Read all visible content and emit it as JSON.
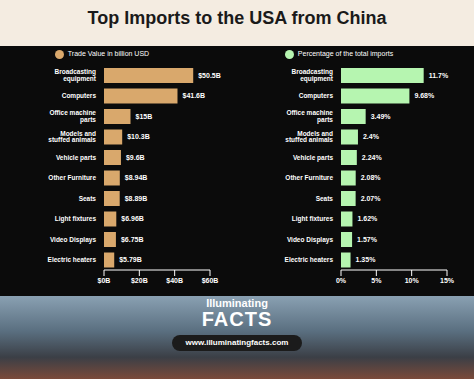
{
  "title": "Top Imports to the USA from China",
  "annotations": [
    "Illuminating",
    "FACTS",
    "www.illuminatingfacts.com"
  ],
  "chart_data": [
    {
      "type": "bar",
      "orientation": "horizontal",
      "categories": [
        "Broadcasting equipment",
        "Computers",
        "Office machine parts",
        "Models and stuffed animals",
        "Vehicle parts",
        "Other Furniture",
        "Seats",
        "Light fixtures",
        "Video Displays",
        "Electric heaters"
      ],
      "series": [
        {
          "name": "Trade Value in billion USD",
          "color": "#d9a86c",
          "values": [
            50.5,
            41.6,
            15,
            10.3,
            9.6,
            8.94,
            8.89,
            6.96,
            6.75,
            5.79
          ],
          "value_labels": [
            "$50.5B",
            "$41.6B",
            "$15B",
            "$10.3B",
            "$9.6B",
            "$8.94B",
            "$8.89B",
            "$6.96B",
            "$6.75B",
            "$5.79B"
          ]
        }
      ],
      "xlim": [
        0,
        60
      ],
      "xticks": [
        {
          "value": 0,
          "label": "$0B"
        },
        {
          "value": 20,
          "label": "$20B"
        },
        {
          "value": 40,
          "label": "$40B"
        },
        {
          "value": 60,
          "label": "$60B"
        }
      ],
      "data_labels": true,
      "legend": "top",
      "grid": false
    },
    {
      "type": "bar",
      "orientation": "horizontal",
      "categories": [
        "Broadcasting equipment",
        "Computers",
        "Office machine parts",
        "Models and stuffed animals",
        "Vehicle parts",
        "Other Furniture",
        "Seats",
        "Light fixtures",
        "Video Displays",
        "Electric heaters"
      ],
      "series": [
        {
          "name": "Percentage of the total imports",
          "color": "#b6f5b0",
          "values": [
            11.7,
            9.68,
            3.49,
            2.4,
            2.24,
            2.08,
            2.07,
            1.62,
            1.57,
            1.35
          ],
          "value_labels": [
            "11.7%",
            "9.68%",
            "3.49%",
            "2.4%",
            "2.24%",
            "2.08%",
            "2.07%",
            "1.62%",
            "1.57%",
            "1.35%"
          ]
        }
      ],
      "xlim": [
        0,
        15
      ],
      "xticks": [
        {
          "value": 0,
          "label": "0%"
        },
        {
          "value": 5,
          "label": "5%"
        },
        {
          "value": 10,
          "label": "10%"
        },
        {
          "value": 15,
          "label": "15%"
        }
      ],
      "data_labels": true,
      "legend": "top",
      "grid": false
    }
  ]
}
